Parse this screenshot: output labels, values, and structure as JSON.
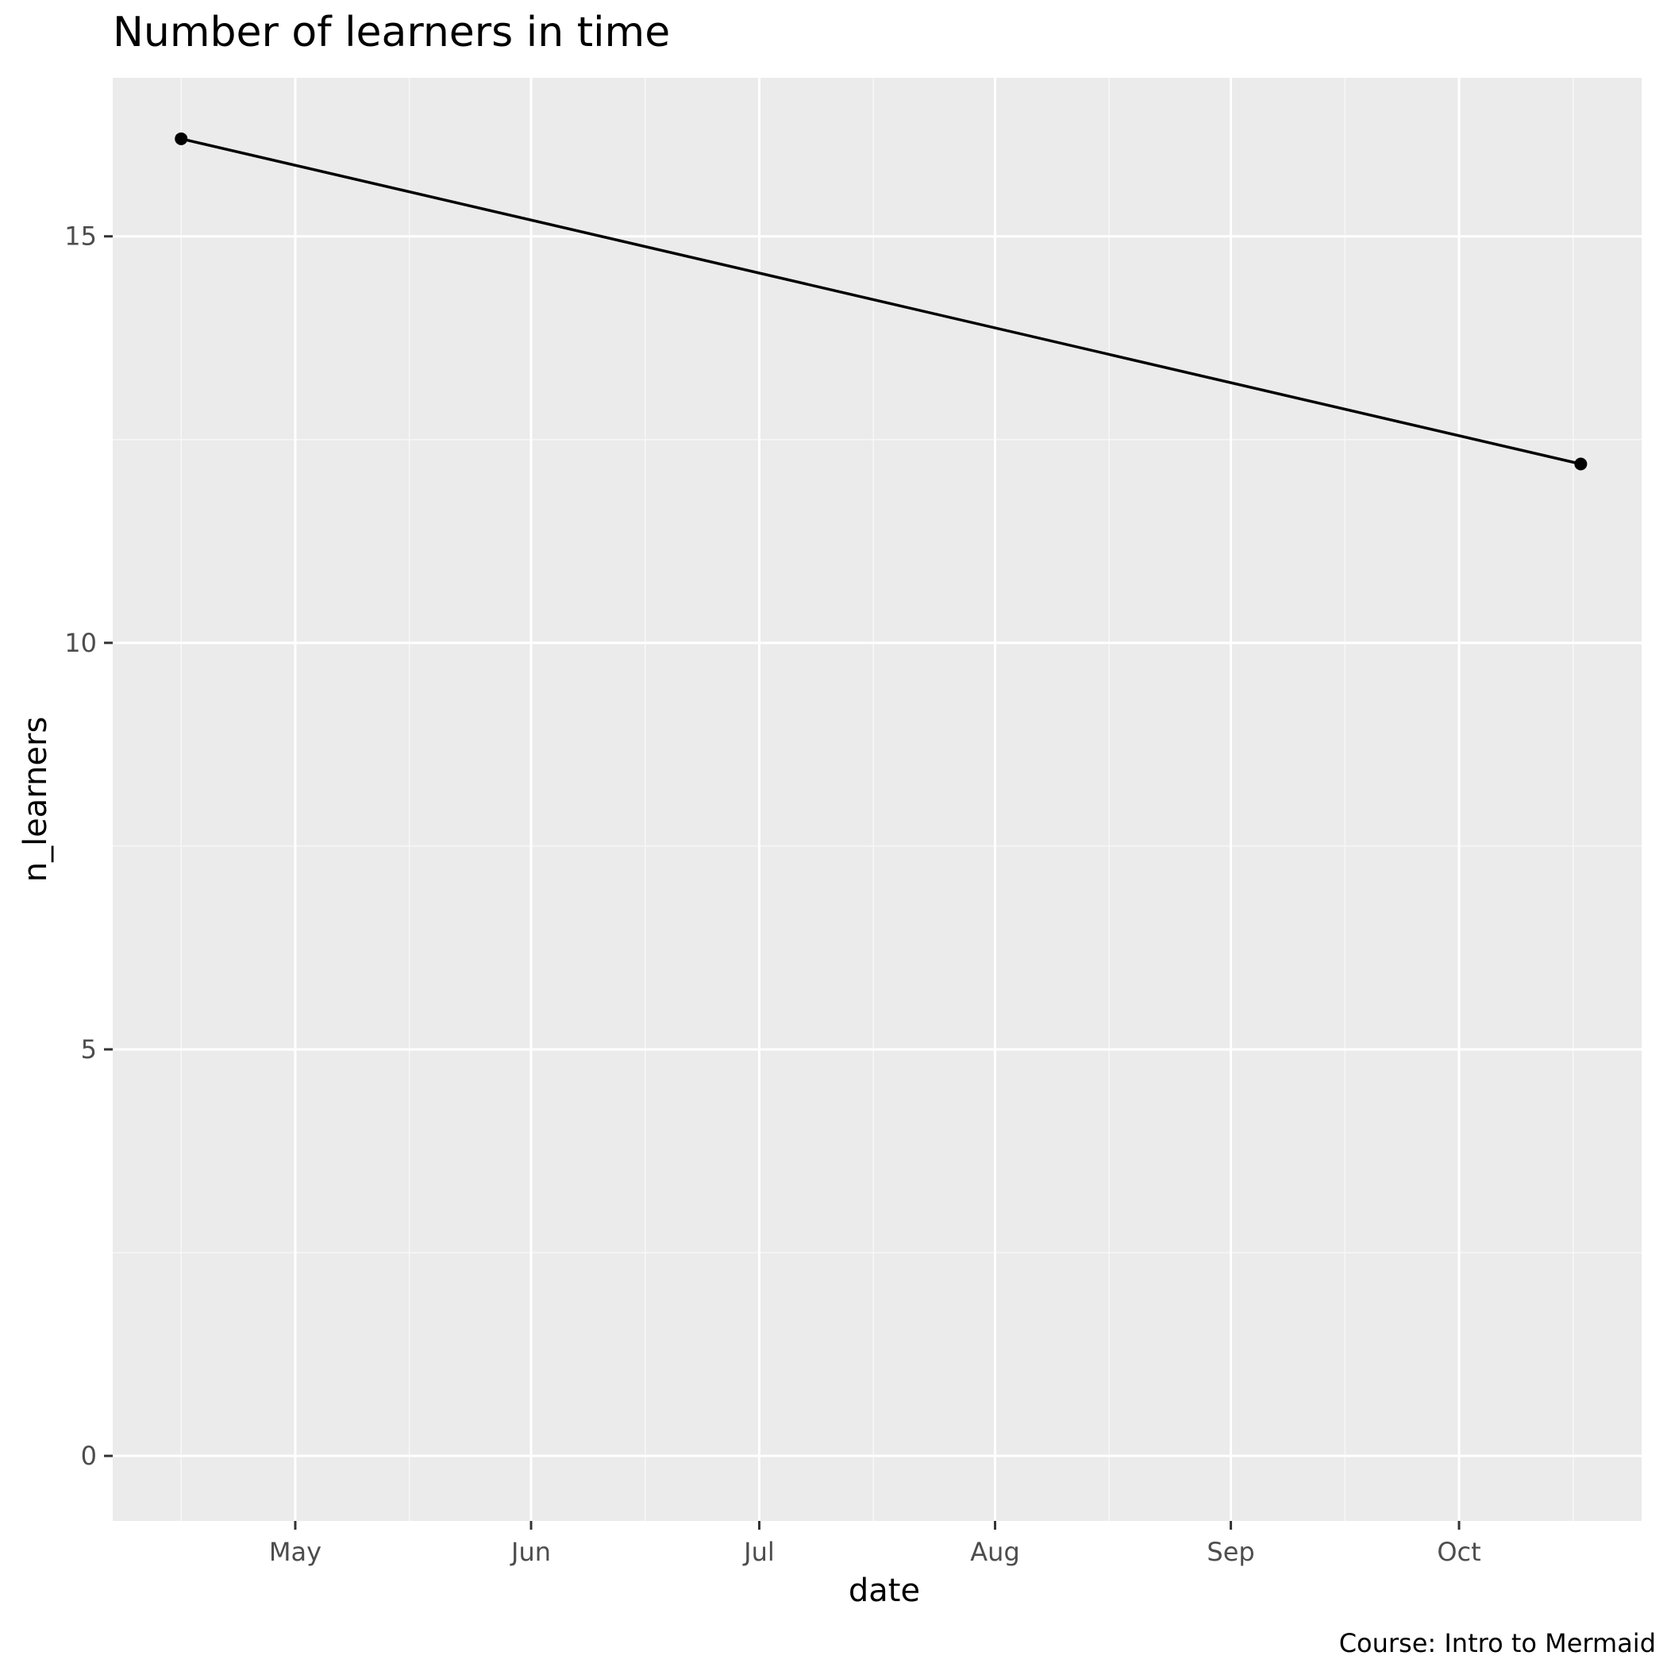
{
  "chart_data": {
    "type": "line",
    "title": "Number of learners in time",
    "xlabel": "date",
    "ylabel": "n_learners",
    "caption": "Course: Intro to Mermaid",
    "x": [
      "2023-04-16",
      "2023-10-17"
    ],
    "series": [
      {
        "values": [
          16.2,
          12.2
        ]
      }
    ],
    "xlim": [
      "2023-04-07",
      "2023-10-25"
    ],
    "ylim": [
      -0.8,
      16.95
    ],
    "x_ticks": [
      {
        "date": "2023-05-01",
        "label": "May"
      },
      {
        "date": "2023-06-01",
        "label": "Jun"
      },
      {
        "date": "2023-07-01",
        "label": "Jul"
      },
      {
        "date": "2023-08-01",
        "label": "Aug"
      },
      {
        "date": "2023-09-01",
        "label": "Sep"
      },
      {
        "date": "2023-10-01",
        "label": "Oct"
      }
    ],
    "x_minor_ticks": [
      "2023-04-16",
      "2023-05-16",
      "2023-06-16",
      "2023-07-16",
      "2023-08-16",
      "2023-09-16",
      "2023-10-16"
    ],
    "y_ticks": [
      {
        "value": 0,
        "label": "0"
      },
      {
        "value": 5,
        "label": "5"
      },
      {
        "value": 10,
        "label": "10"
      },
      {
        "value": 15,
        "label": "15"
      }
    ],
    "y_minor_ticks": [
      2.5,
      7.5,
      12.5
    ],
    "grid": true,
    "legend": "none",
    "colors": {
      "panel_background": "#ebebeb",
      "grid_major": "#ffffff",
      "grid_minor": "#f7f7f7",
      "line": "#000000",
      "point": "#000000",
      "tick_mark": "#333333"
    }
  }
}
